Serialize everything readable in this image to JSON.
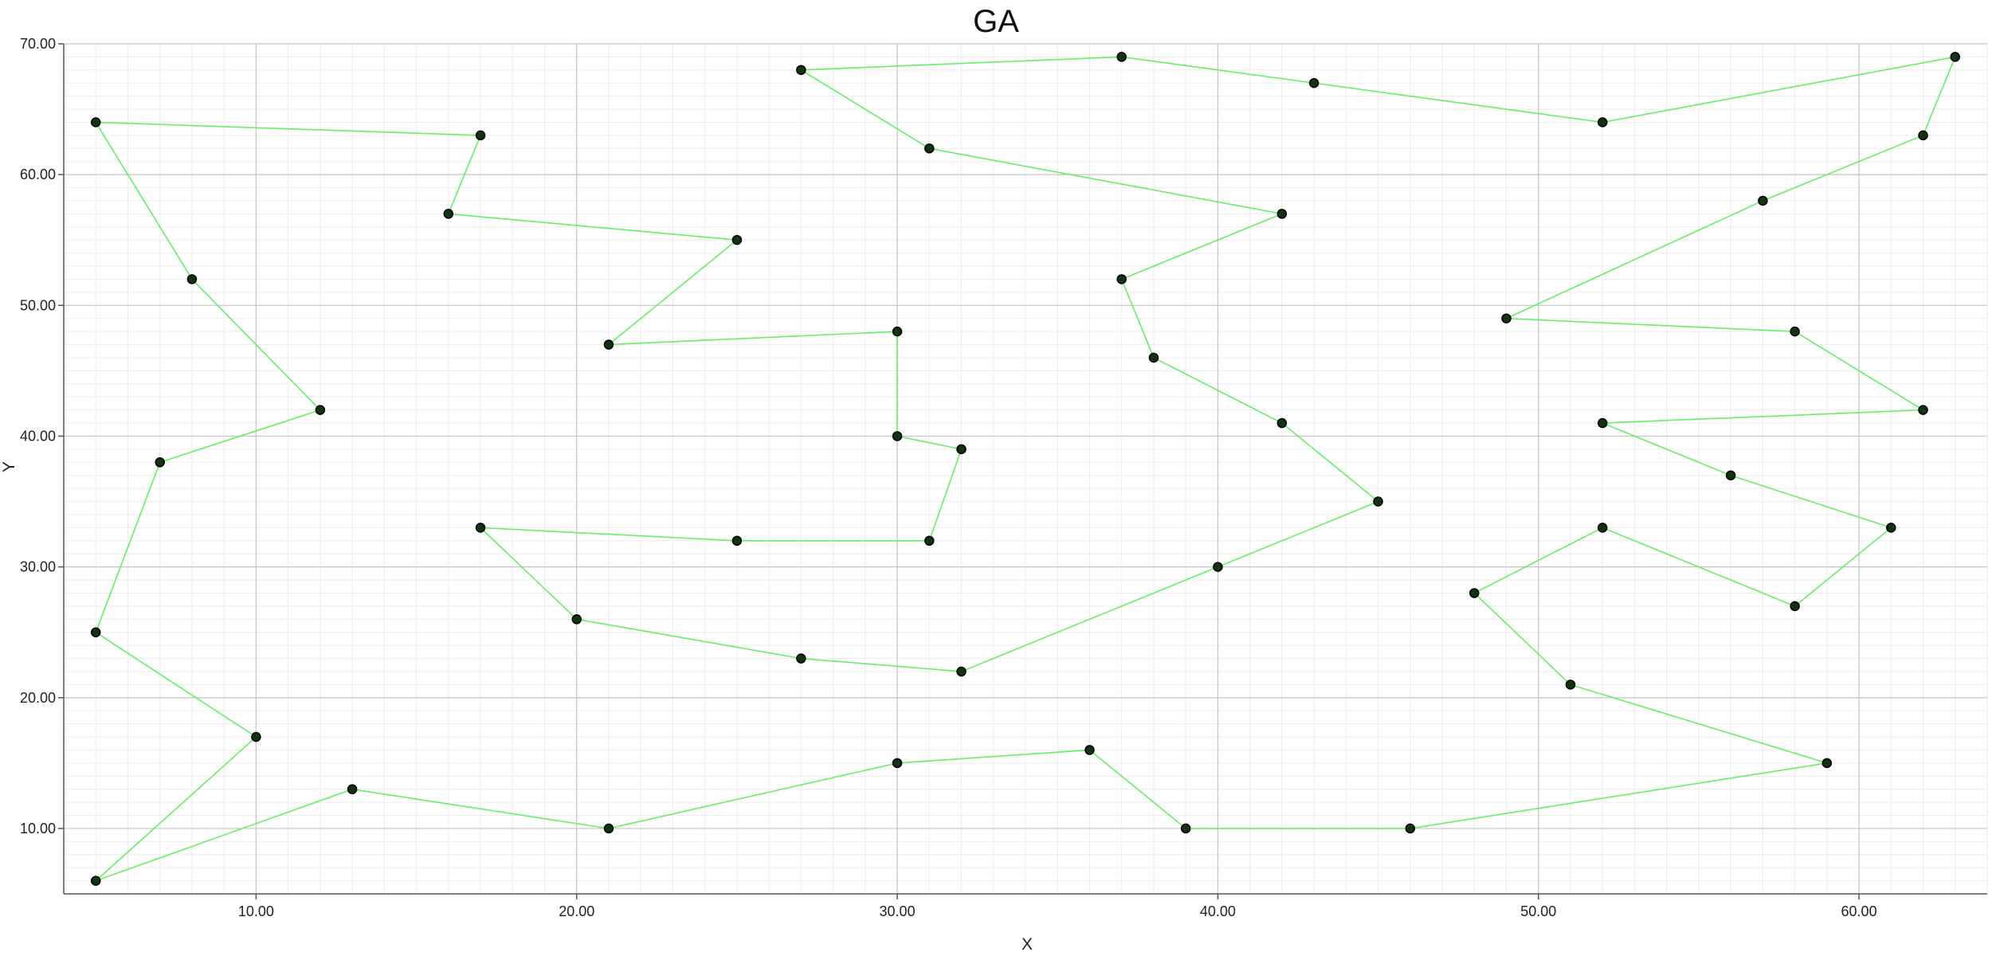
{
  "chart_data": {
    "type": "line",
    "title": "GA",
    "xlabel": "X",
    "ylabel": "Y",
    "xlim": [
      4,
      64
    ],
    "ylim": [
      5,
      70
    ],
    "x_ticks": [
      10,
      20,
      30,
      40,
      50,
      60
    ],
    "x_tick_labels": [
      "10.00",
      "20.00",
      "30.00",
      "40.00",
      "50.00",
      "60.00"
    ],
    "y_ticks": [
      10,
      20,
      30,
      40,
      50,
      60,
      70
    ],
    "y_tick_labels": [
      "10.00",
      "20.00",
      "30.00",
      "40.00",
      "50.00",
      "60.00",
      "70.00"
    ],
    "grid": true,
    "legend": "none",
    "line_color": "#66ee66",
    "point_color": "#113311",
    "series": [
      {
        "points": [
          [
            27,
            68
          ],
          [
            37,
            69
          ],
          [
            43,
            67
          ],
          [
            52,
            64
          ],
          [
            63,
            69
          ],
          [
            62,
            63
          ],
          [
            57,
            58
          ],
          [
            49,
            49
          ],
          [
            58,
            48
          ],
          [
            62,
            42
          ],
          [
            52,
            41
          ],
          [
            56,
            37
          ],
          [
            61,
            33
          ],
          [
            58,
            27
          ],
          [
            52,
            33
          ],
          [
            48,
            28
          ],
          [
            51,
            21
          ],
          [
            59,
            15
          ],
          [
            46,
            10
          ],
          [
            39,
            10
          ],
          [
            36,
            16
          ],
          [
            30,
            15
          ],
          [
            21,
            10
          ],
          [
            13,
            13
          ],
          [
            5,
            6
          ],
          [
            10,
            17
          ],
          [
            5,
            25
          ],
          [
            7,
            38
          ],
          [
            12,
            42
          ],
          [
            8,
            52
          ],
          [
            5,
            64
          ],
          [
            17,
            63
          ],
          [
            16,
            57
          ],
          [
            25,
            55
          ],
          [
            21,
            47
          ],
          [
            30,
            48
          ],
          [
            30,
            40
          ],
          [
            32,
            39
          ],
          [
            31,
            32
          ],
          [
            25,
            32
          ],
          [
            17,
            33
          ],
          [
            20,
            26
          ],
          [
            27,
            23
          ],
          [
            32,
            22
          ],
          [
            40,
            30
          ],
          [
            45,
            35
          ],
          [
            42,
            41
          ],
          [
            38,
            46
          ],
          [
            37,
            52
          ],
          [
            42,
            57
          ],
          [
            31,
            62
          ],
          [
            27,
            68
          ]
        ]
      }
    ]
  }
}
